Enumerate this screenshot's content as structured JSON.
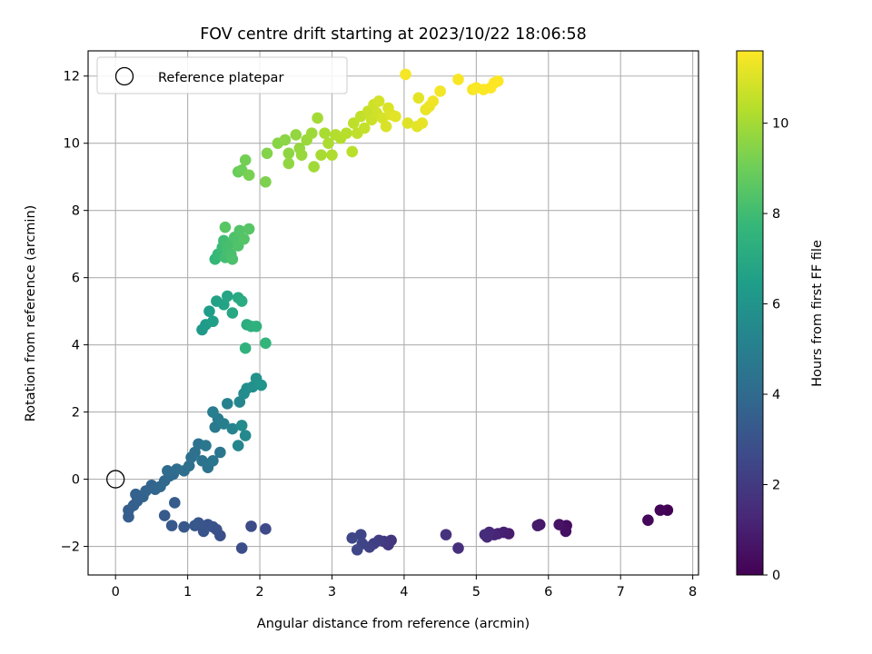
{
  "chart_data": {
    "type": "scatter",
    "title": "FOV centre drift starting at 2023/10/22 18:06:58",
    "xlabel": "Angular distance from reference (arcmin)",
    "ylabel": "Rotation from reference (arcmin)",
    "xlim": [
      -0.38,
      8.08
    ],
    "ylim": [
      -2.85,
      12.75
    ],
    "xticks": [
      0,
      1,
      2,
      3,
      4,
      5,
      6,
      7,
      8
    ],
    "yticks": [
      -2,
      0,
      2,
      4,
      6,
      8,
      10,
      12
    ],
    "grid": true,
    "legend": {
      "placement": "top-left",
      "entries": [
        "Reference platepar"
      ]
    },
    "reference_point": {
      "x": 0,
      "y": 0
    },
    "colorbar": {
      "label": "Hours from first FF file",
      "range": [
        0,
        11.6
      ],
      "ticks": [
        0,
        2,
        4,
        6,
        8,
        10
      ],
      "colormap": [
        "#440154",
        "#482878",
        "#3e4989",
        "#31688e",
        "#26828e",
        "#1f9e89",
        "#35b779",
        "#6ece58",
        "#b5de2b",
        "#fde725"
      ]
    },
    "points": [
      [
        7.65,
        -0.92,
        0.0
      ],
      [
        7.55,
        -0.92,
        0.1
      ],
      [
        7.38,
        -1.22,
        0.2
      ],
      [
        6.25,
        -1.38,
        0.4
      ],
      [
        6.24,
        -1.55,
        0.5
      ],
      [
        6.15,
        -1.35,
        0.6
      ],
      [
        5.88,
        -1.35,
        0.7
      ],
      [
        5.85,
        -1.38,
        0.8
      ],
      [
        5.45,
        -1.62,
        0.9
      ],
      [
        5.38,
        -1.58,
        1.0
      ],
      [
        5.3,
        -1.62,
        1.1
      ],
      [
        5.25,
        -1.65,
        1.2
      ],
      [
        5.18,
        -1.58,
        1.3
      ],
      [
        5.15,
        -1.72,
        1.4
      ],
      [
        5.12,
        -1.65,
        1.5
      ],
      [
        4.75,
        -2.05,
        1.6
      ],
      [
        4.58,
        -1.65,
        1.7
      ],
      [
        3.82,
        -1.82,
        1.8
      ],
      [
        3.78,
        -1.95,
        1.9
      ],
      [
        3.72,
        -1.85,
        2.0
      ],
      [
        3.65,
        -1.82,
        2.1
      ],
      [
        3.58,
        -1.92,
        2.2
      ],
      [
        3.52,
        -2.02,
        2.3
      ],
      [
        3.42,
        -1.92,
        2.4
      ],
      [
        3.4,
        -1.65,
        2.45
      ],
      [
        3.35,
        -2.1,
        2.5
      ],
      [
        3.28,
        -1.75,
        2.55
      ],
      [
        2.08,
        -1.48,
        2.6
      ],
      [
        1.88,
        -1.4,
        2.7
      ],
      [
        1.75,
        -2.05,
        2.8
      ],
      [
        1.45,
        -1.68,
        2.85
      ],
      [
        1.4,
        -1.5,
        2.9
      ],
      [
        1.35,
        -1.42,
        2.95
      ],
      [
        1.28,
        -1.35,
        3.0
      ],
      [
        1.22,
        -1.55,
        3.05
      ],
      [
        1.15,
        -1.3,
        3.1
      ],
      [
        1.1,
        -1.38,
        3.15
      ],
      [
        0.95,
        -1.42,
        3.2
      ],
      [
        0.78,
        -1.38,
        3.25
      ],
      [
        0.68,
        -1.08,
        3.3
      ],
      [
        0.82,
        -0.7,
        3.35
      ],
      [
        0.18,
        -1.12,
        3.4
      ],
      [
        0.18,
        -0.92,
        3.45
      ],
      [
        0.25,
        -0.78,
        3.5
      ],
      [
        0.3,
        -0.65,
        3.55
      ],
      [
        0.28,
        -0.45,
        3.6
      ],
      [
        0.38,
        -0.52,
        3.65
      ],
      [
        0.42,
        -0.35,
        3.7
      ],
      [
        0.5,
        -0.18,
        3.75
      ],
      [
        0.55,
        -0.3,
        3.8
      ],
      [
        0.62,
        -0.22,
        3.85
      ],
      [
        0.68,
        -0.05,
        3.9
      ],
      [
        0.75,
        0.1,
        3.95
      ],
      [
        0.8,
        0.15,
        4.0
      ],
      [
        0.72,
        0.25,
        4.05
      ],
      [
        0.85,
        0.3,
        4.1
      ],
      [
        0.95,
        0.25,
        4.15
      ],
      [
        1.02,
        0.4,
        4.2
      ],
      [
        1.05,
        0.65,
        4.25
      ],
      [
        1.1,
        0.8,
        4.3
      ],
      [
        1.15,
        1.05,
        4.35
      ],
      [
        1.2,
        0.55,
        4.4
      ],
      [
        1.28,
        0.35,
        4.45
      ],
      [
        1.35,
        0.55,
        4.5
      ],
      [
        1.45,
        0.8,
        4.55
      ],
      [
        1.25,
        1.0,
        4.6
      ],
      [
        1.38,
        1.55,
        4.7
      ],
      [
        1.42,
        1.8,
        4.8
      ],
      [
        1.35,
        2.0,
        4.9
      ],
      [
        1.5,
        1.65,
        5.0
      ],
      [
        1.55,
        2.25,
        5.1
      ],
      [
        1.62,
        1.5,
        5.2
      ],
      [
        1.7,
        1.0,
        5.3
      ],
      [
        1.72,
        2.3,
        5.4
      ],
      [
        1.8,
        1.3,
        5.5
      ],
      [
        1.75,
        1.6,
        5.55
      ],
      [
        1.78,
        2.55,
        5.6
      ],
      [
        1.82,
        2.7,
        5.7
      ],
      [
        1.9,
        2.75,
        5.8
      ],
      [
        1.95,
        3.0,
        5.9
      ],
      [
        2.02,
        2.8,
        6.0
      ],
      [
        1.2,
        4.45,
        6.2
      ],
      [
        1.25,
        4.6,
        6.3
      ],
      [
        1.3,
        5.0,
        6.4
      ],
      [
        1.35,
        4.7,
        6.5
      ],
      [
        1.4,
        5.3,
        6.6
      ],
      [
        1.5,
        5.2,
        6.7
      ],
      [
        1.55,
        5.45,
        6.8
      ],
      [
        1.62,
        4.95,
        6.9
      ],
      [
        1.7,
        5.4,
        7.0
      ],
      [
        1.75,
        5.3,
        7.1
      ],
      [
        1.82,
        4.6,
        7.2
      ],
      [
        1.88,
        4.55,
        7.3
      ],
      [
        1.95,
        4.55,
        7.4
      ],
      [
        1.8,
        3.9,
        7.5
      ],
      [
        2.08,
        4.05,
        7.6
      ],
      [
        1.38,
        6.55,
        7.7
      ],
      [
        1.42,
        6.7,
        7.8
      ],
      [
        1.48,
        6.9,
        7.9
      ],
      [
        1.5,
        7.1,
        8.0
      ],
      [
        1.52,
        6.6,
        8.05
      ],
      [
        1.55,
        6.85,
        8.1
      ],
      [
        1.58,
        7.0,
        8.15
      ],
      [
        1.6,
        6.7,
        8.2
      ],
      [
        1.62,
        6.55,
        8.25
      ],
      [
        1.65,
        7.2,
        8.3
      ],
      [
        1.7,
        6.95,
        8.35
      ],
      [
        1.72,
        7.4,
        8.4
      ],
      [
        1.78,
        7.15,
        8.45
      ],
      [
        1.85,
        7.45,
        8.5
      ],
      [
        1.52,
        7.5,
        8.55
      ],
      [
        1.7,
        9.15,
        8.9
      ],
      [
        1.75,
        9.2,
        9.0
      ],
      [
        1.8,
        9.5,
        9.1
      ],
      [
        1.85,
        9.05,
        9.2
      ],
      [
        2.08,
        8.85,
        9.3
      ],
      [
        2.1,
        9.7,
        9.4
      ],
      [
        2.25,
        10.0,
        9.5
      ],
      [
        2.35,
        10.1,
        9.55
      ],
      [
        2.4,
        9.7,
        9.6
      ],
      [
        2.4,
        9.4,
        9.65
      ],
      [
        2.5,
        10.25,
        9.7
      ],
      [
        2.55,
        9.85,
        9.75
      ],
      [
        2.58,
        9.65,
        9.8
      ],
      [
        2.65,
        10.1,
        9.85
      ],
      [
        2.72,
        10.3,
        9.9
      ],
      [
        2.75,
        9.3,
        9.95
      ],
      [
        2.8,
        10.75,
        10.0
      ],
      [
        2.85,
        9.65,
        10.05
      ],
      [
        2.9,
        10.3,
        10.1
      ],
      [
        2.95,
        10.0,
        10.15
      ],
      [
        3.0,
        9.65,
        10.2
      ],
      [
        3.05,
        10.25,
        10.25
      ],
      [
        3.12,
        10.15,
        10.3
      ],
      [
        3.2,
        10.3,
        10.35
      ],
      [
        3.28,
        9.75,
        10.4
      ],
      [
        3.3,
        10.6,
        10.45
      ],
      [
        3.35,
        10.3,
        10.5
      ],
      [
        3.4,
        10.8,
        10.55
      ],
      [
        3.45,
        10.45,
        10.6
      ],
      [
        3.5,
        10.95,
        10.65
      ],
      [
        3.55,
        10.7,
        10.7
      ],
      [
        3.58,
        11.15,
        10.75
      ],
      [
        3.62,
        10.9,
        10.8
      ],
      [
        3.65,
        11.25,
        10.85
      ],
      [
        3.7,
        10.75,
        10.9
      ],
      [
        3.75,
        10.5,
        10.95
      ],
      [
        3.78,
        11.05,
        11.0
      ],
      [
        3.82,
        10.85,
        11.05
      ],
      [
        3.88,
        10.8,
        11.1
      ],
      [
        4.05,
        10.6,
        11.05
      ],
      [
        4.18,
        10.5,
        11.1
      ],
      [
        4.2,
        11.35,
        11.15
      ],
      [
        4.25,
        10.6,
        11.2
      ],
      [
        4.3,
        11.0,
        11.25
      ],
      [
        4.35,
        11.1,
        11.3
      ],
      [
        4.4,
        11.25,
        11.35
      ],
      [
        4.5,
        11.55,
        11.4
      ],
      [
        4.02,
        12.05,
        11.45
      ],
      [
        4.75,
        11.9,
        11.5
      ],
      [
        4.95,
        11.6,
        11.5
      ],
      [
        5.0,
        11.65,
        11.55
      ],
      [
        5.1,
        11.6,
        11.55
      ],
      [
        5.2,
        11.65,
        11.6
      ],
      [
        5.25,
        11.8,
        11.6
      ],
      [
        5.3,
        11.85,
        11.6
      ]
    ]
  }
}
